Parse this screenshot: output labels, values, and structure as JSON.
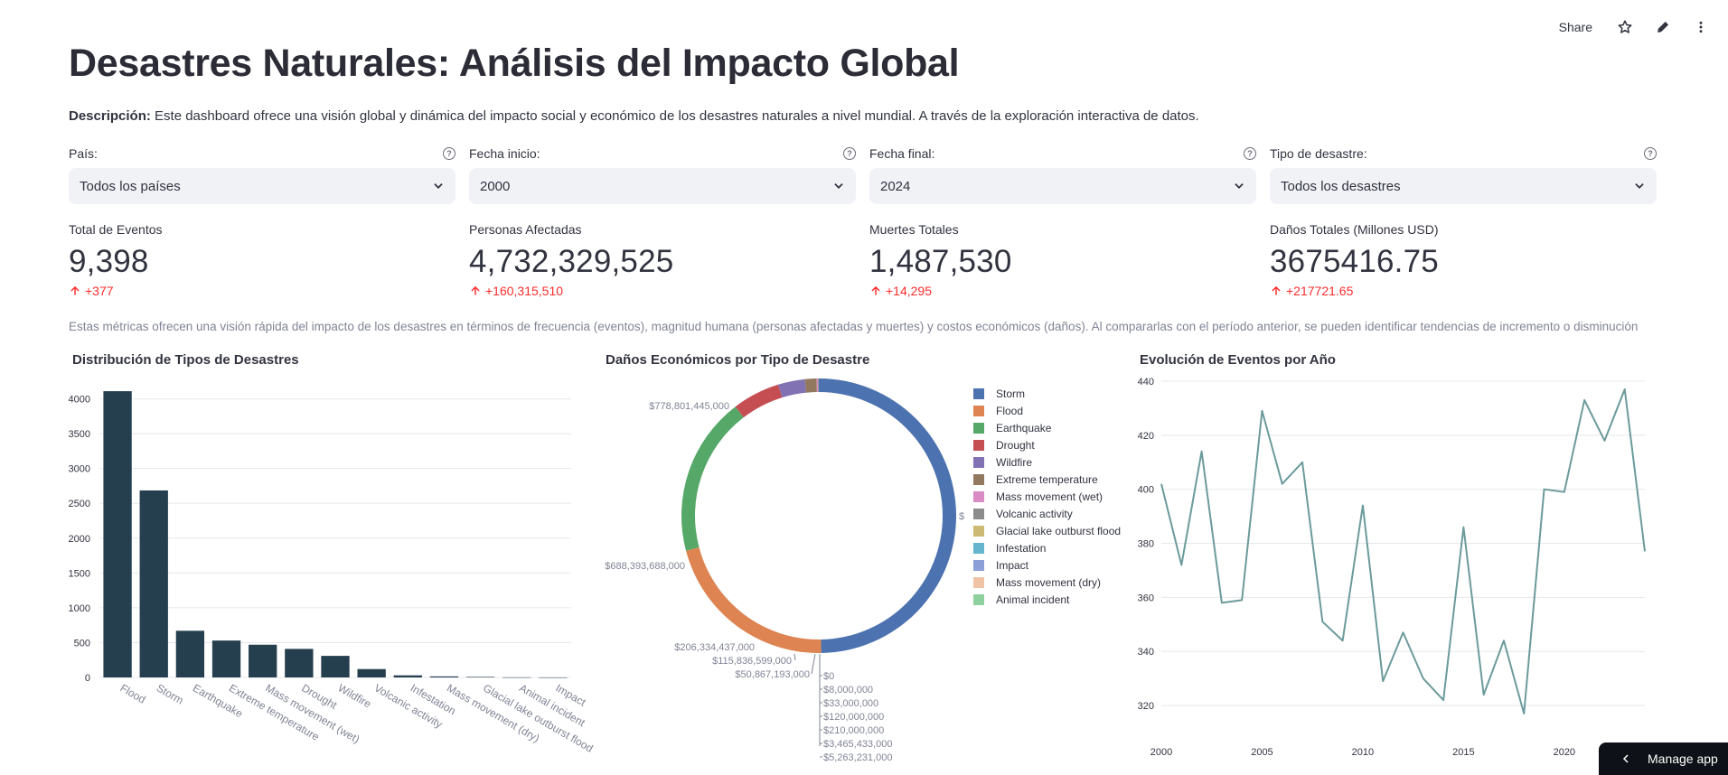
{
  "header": {
    "share_label": "Share",
    "icons": [
      "star-icon",
      "pencil-icon",
      "more-vertical-icon"
    ]
  },
  "page": {
    "title": "Desastres Naturales: Análisis del Impacto Global",
    "desc_bold": "Descripción:",
    "desc_text": " Este dashboard ofrece una visión global y dinámica del impacto social y económico de los desastres naturales a nivel mundial. A través de la exploración interactiva de datos."
  },
  "filters": [
    {
      "label": "País:",
      "value": "Todos los países"
    },
    {
      "label": "Fecha inicio:",
      "value": "2000"
    },
    {
      "label": "Fecha final:",
      "value": "2024"
    },
    {
      "label": "Tipo de desastre:",
      "value": "Todos los desastres"
    }
  ],
  "metrics": [
    {
      "label": "Total de Eventos",
      "value": "9,398",
      "delta": "+377"
    },
    {
      "label": "Personas Afectadas",
      "value": "4,732,329,525",
      "delta": "+160,315,510"
    },
    {
      "label": "Muertes Totales",
      "value": "1,487,530",
      "delta": "+14,295"
    },
    {
      "label": "Daños Totales (Millones USD)",
      "value": "3675416.75",
      "delta": "+217721.65"
    }
  ],
  "metrics_caption": "Estas métricas ofrecen una visión rápida del impacto de los desastres en términos de frecuencia (eventos), magnitud humana (personas afectadas y muertes) y costos económicos (daños). Al compararlas con el período anterior, se pueden identificar tendencias de incremento o disminución",
  "colors": {
    "bar": "#263f4f",
    "line": "#6c9a9a",
    "delta": "#ff2b2b",
    "pie": [
      "#4c72b0",
      "#dd8452",
      "#55a868",
      "#c44e52",
      "#8172b3",
      "#937860",
      "#da8bc3",
      "#8c8c8c",
      "#ccb974",
      "#64b5cd",
      "#8c9fd6",
      "#f0c2a6",
      "#8fd19e"
    ]
  },
  "chart_data": [
    {
      "type": "bar",
      "title": "Distribución de Tipos de Desastres",
      "categories": [
        "Flood",
        "Storm",
        "Earthquake",
        "Extreme temperature",
        "Mass movement (wet)",
        "Drought",
        "Wildfire",
        "Volcanic activity",
        "Infestation",
        "Mass movement (dry)",
        "Glacial lake outburst flood",
        "Animal incident",
        "Impact"
      ],
      "values": [
        4110,
        2685,
        670,
        530,
        470,
        410,
        310,
        120,
        30,
        15,
        8,
        2,
        1
      ],
      "yticks": [
        0,
        500,
        1000,
        1500,
        2000,
        2500,
        3000,
        3500,
        4000
      ],
      "ylim": [
        0,
        4150
      ]
    },
    {
      "type": "pie",
      "title": "Daños Económicos por Tipo de Desastre",
      "labels": [
        "Storm",
        "Flood",
        "Earthquake",
        "Drought",
        "Wildfire",
        "Extreme temperature",
        "Mass movement (wet)",
        "Volcanic activity",
        "Glacial lake outburst flood",
        "Infestation",
        "Impact",
        "Mass movement (dry)",
        "Animal incident"
      ],
      "values": [
        1829000000000,
        778801445000,
        688393688000,
        206334437000,
        115836599000,
        50867193000,
        5263231000,
        3465433000,
        210000000,
        120000000,
        33000000,
        8000000,
        0
      ],
      "data_labels": [
        "$778,801,445,000",
        "$688,393,688,000",
        "$206,334,437,000",
        "$115,836,599,000",
        "$50,867,193,000",
        "$0",
        "$8,000,000",
        "$33,000,000",
        "$120,000,000",
        "$210,000,000",
        "$3,465,433,000",
        "$5,263,231,000",
        "$"
      ]
    },
    {
      "type": "line",
      "title": "Evolución de Eventos por Año",
      "x": [
        2000,
        2001,
        2002,
        2003,
        2004,
        2005,
        2006,
        2007,
        2008,
        2009,
        2010,
        2011,
        2012,
        2013,
        2014,
        2015,
        2016,
        2017,
        2018,
        2019,
        2020,
        2021,
        2022,
        2023,
        2024
      ],
      "y": [
        402,
        372,
        414,
        358,
        359,
        429,
        402,
        410,
        351,
        344,
        394,
        329,
        347,
        330,
        322,
        386,
        324,
        344,
        317,
        400,
        399,
        433,
        418,
        437,
        377
      ],
      "xticks": [
        2000,
        2005,
        2010,
        2015,
        2020
      ],
      "yticks": [
        320,
        340,
        360,
        380,
        400,
        420,
        440
      ],
      "ylim": [
        312,
        440
      ],
      "xlim": [
        2000,
        2024
      ]
    }
  ],
  "footer": {
    "manage_label": "Manage app"
  }
}
